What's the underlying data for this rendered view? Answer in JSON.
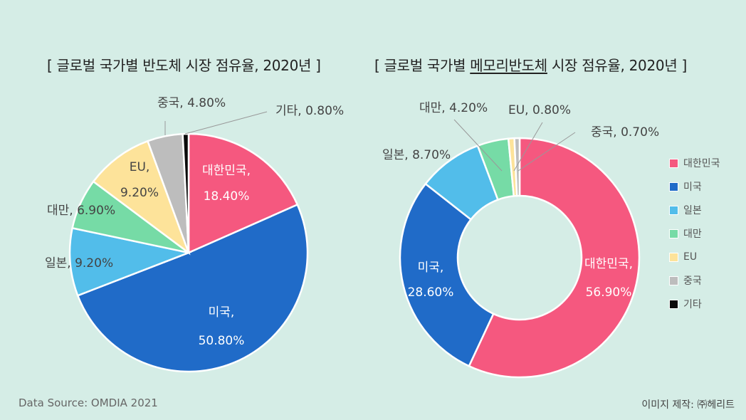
{
  "left_chart": {
    "title_prefix": "[ 글로벌 국가별 ",
    "title_emphasis": "반도체",
    "title_suffix": " 시장 점유율, 2020년 ]",
    "title": "[ 글로벌 국가별 반도체 시장 점유율, 2020년 ]"
  },
  "right_chart": {
    "title_prefix": "[ 글로벌 국가별 ",
    "title_emphasis": "메모리반도체",
    "title_suffix": " 시장 점유율, 2020년 ]",
    "title": "[ 글로벌 국가별 메모리반도체 시장 점유율, 2020년 ]"
  },
  "legend": [
    {
      "label": "대한민국",
      "color": "#f5587f"
    },
    {
      "label": "미국",
      "color": "#206bc8"
    },
    {
      "label": "일본",
      "color": "#52bdea"
    },
    {
      "label": "대만",
      "color": "#76dba6"
    },
    {
      "label": "EU",
      "color": "#fde39a"
    },
    {
      "label": "중국",
      "color": "#bdbdbd"
    },
    {
      "label": "기타",
      "color": "#0a0a0a"
    }
  ],
  "footer": {
    "source": "Data Source: OMDIA 2021",
    "credit": "이미지 제작: ㈜헤리트"
  },
  "chart_data": [
    {
      "type": "pie",
      "title": "[ 글로벌 국가별 반도체 시장 점유율, 2020년 ]",
      "categories": [
        "대한민국",
        "미국",
        "일본",
        "대만",
        "EU",
        "중국",
        "기타"
      ],
      "values": [
        18.4,
        50.8,
        9.2,
        6.9,
        9.2,
        4.8,
        0.8
      ],
      "labels": [
        "대한민국, 18.40%",
        "미국, 50.80%",
        "일본, 9.20%",
        "대만, 6.90%",
        "EU, 9.20%",
        "중국, 4.80%",
        "기타, 0.80%"
      ],
      "colors": [
        "#f5587f",
        "#206bc8",
        "#52bdea",
        "#76dba6",
        "#fde39a",
        "#bdbdbd",
        "#0a0a0a"
      ],
      "unit": "%",
      "start_angle": "12 o'clock, clockwise",
      "legend_position": "right (shared)"
    },
    {
      "type": "pie",
      "subtype": "donut",
      "title": "[ 글로벌 국가별 메모리반도체 시장 점유율, 2020년 ]",
      "categories": [
        "대한민국",
        "미국",
        "일본",
        "대만",
        "EU",
        "중국"
      ],
      "values": [
        56.9,
        28.6,
        8.7,
        4.2,
        0.8,
        0.7
      ],
      "labels": [
        "대한민국, 56.90%",
        "미국, 28.60%",
        "일본, 8.70%",
        "대만, 4.20%",
        "EU, 0.80%",
        "중국, 0.70%"
      ],
      "colors": [
        "#f5587f",
        "#206bc8",
        "#52bdea",
        "#76dba6",
        "#fde39a",
        "#bdbdbd"
      ],
      "unit": "%",
      "start_angle": "12 o'clock, clockwise",
      "legend_position": "right"
    }
  ]
}
